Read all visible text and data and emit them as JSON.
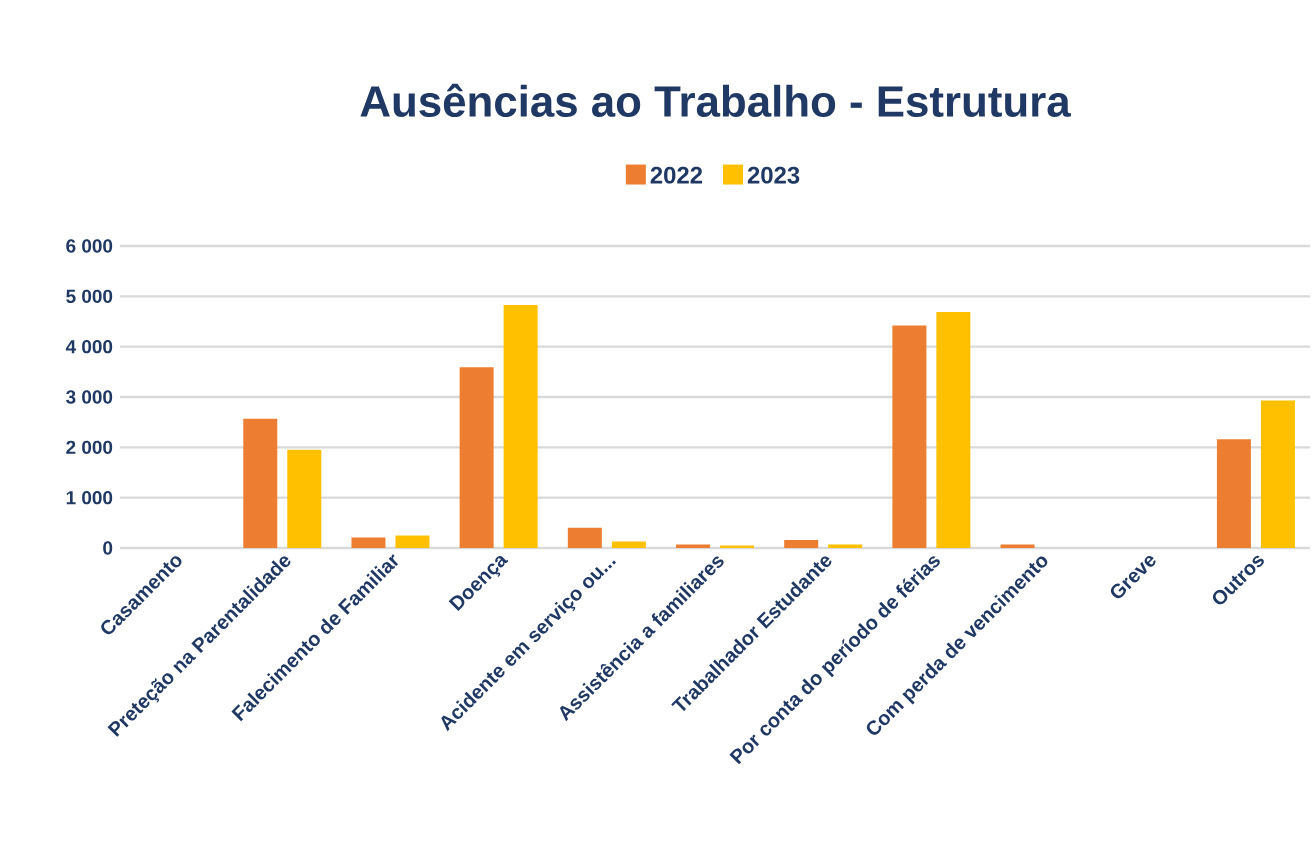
{
  "chart_data": {
    "type": "bar",
    "title": "Ausências ao Trabalho - Estrutura",
    "categories": [
      "Casamento",
      "Preteção na Parentalidade",
      "Falecimento de Familiar",
      "Doença",
      "Acidente em serviço ou...",
      "Assistência a familiares",
      "Trabalhador Estudante",
      "Por conta do período de férias",
      "Com perda de vencimento",
      "Greve",
      "Outros"
    ],
    "series": [
      {
        "name": "2022",
        "color": "#ed7d31",
        "values": [
          0,
          2570,
          210,
          3590,
          400,
          70,
          160,
          4420,
          70,
          0,
          2160
        ]
      },
      {
        "name": "2023",
        "color": "#ffc000",
        "values": [
          0,
          1950,
          250,
          4830,
          130,
          50,
          70,
          4690,
          0,
          0,
          2930
        ]
      }
    ],
    "ylim": [
      0,
      6000
    ],
    "yticks": [
      0,
      {
        "value": 1000,
        "label": "1 000"
      },
      {
        "value": 2000,
        "label": "2 000"
      },
      {
        "value": 3000,
        "label": "3 000"
      },
      {
        "value": 4000,
        "label": "4 000"
      },
      {
        "value": 5000,
        "label": "5 000"
      },
      {
        "value": 6000,
        "label": "6 000"
      }
    ],
    "grid": "y",
    "legend": "top"
  }
}
